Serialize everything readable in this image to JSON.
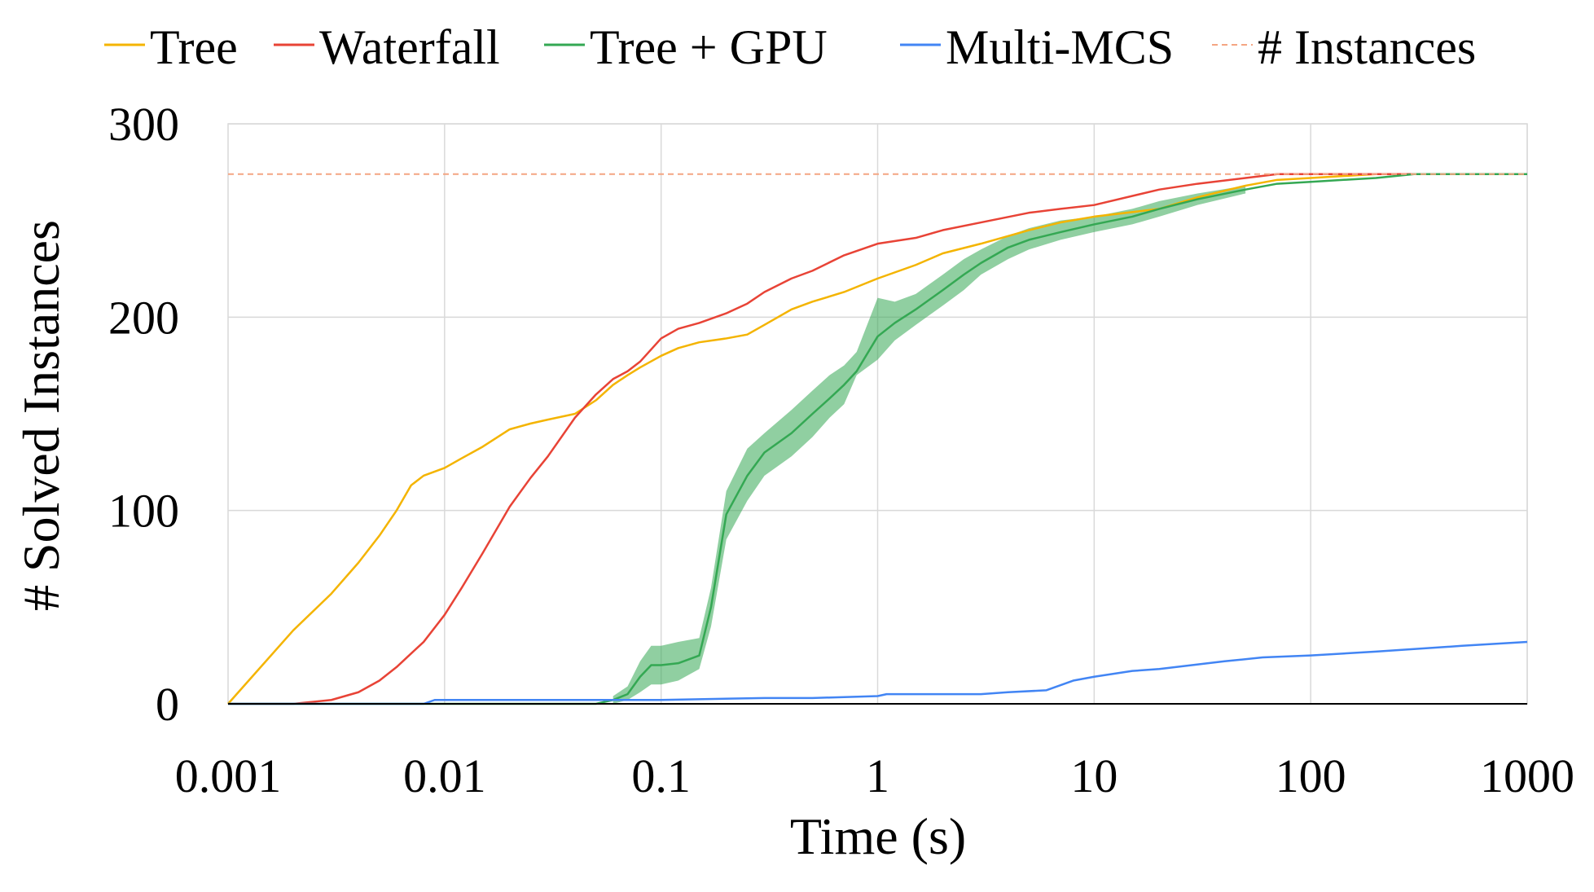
{
  "chart_data": {
    "type": "line",
    "title": "",
    "xlabel": "Time (s)",
    "ylabel": "# Solved Instances",
    "x_scale": "log",
    "xlim": [
      0.001,
      1000
    ],
    "ylim": [
      0,
      300
    ],
    "x_ticks": [
      0.001,
      0.01,
      0.1,
      1,
      10,
      100,
      1000
    ],
    "x_tick_labels": [
      "0.001",
      "0.01",
      "0.1",
      "1",
      "10",
      "100",
      "1000"
    ],
    "y_ticks": [
      0,
      100,
      200,
      300
    ],
    "y_tick_labels": [
      "0",
      "100",
      "200",
      "300"
    ],
    "grid": true,
    "legend_position": "top",
    "series": [
      {
        "name": "Tree",
        "color": "#f4b400",
        "style": "solid",
        "x": [
          0.001,
          0.002,
          0.003,
          0.004,
          0.005,
          0.006,
          0.007,
          0.008,
          0.01,
          0.012,
          0.015,
          0.02,
          0.025,
          0.03,
          0.04,
          0.05,
          0.06,
          0.07,
          0.08,
          0.1,
          0.12,
          0.15,
          0.2,
          0.25,
          0.3,
          0.4,
          0.5,
          0.7,
          1.0,
          1.5,
          2,
          3,
          5,
          7,
          10,
          20,
          30,
          50,
          70,
          100,
          200,
          300,
          1000
        ],
        "y": [
          0,
          38,
          57,
          73,
          87,
          100,
          113,
          118,
          122,
          127,
          133,
          142,
          145,
          147,
          150,
          157,
          165,
          170,
          174,
          180,
          184,
          187,
          189,
          191,
          196,
          204,
          208,
          213,
          220,
          227,
          233,
          238,
          245,
          249,
          252,
          256,
          262,
          268,
          271,
          272,
          274,
          274,
          274
        ]
      },
      {
        "name": "Waterfall",
        "color": "#e84336",
        "style": "solid",
        "x": [
          0.001,
          0.002,
          0.003,
          0.004,
          0.005,
          0.006,
          0.007,
          0.008,
          0.01,
          0.012,
          0.015,
          0.02,
          0.025,
          0.03,
          0.04,
          0.05,
          0.06,
          0.07,
          0.08,
          0.1,
          0.12,
          0.15,
          0.2,
          0.25,
          0.3,
          0.4,
          0.5,
          0.7,
          1.0,
          1.5,
          2,
          3,
          5,
          7,
          10,
          20,
          30,
          50,
          70,
          100,
          200,
          300,
          1000
        ],
        "y": [
          0,
          0,
          2,
          6,
          12,
          19,
          26,
          32,
          46,
          60,
          78,
          102,
          117,
          128,
          148,
          160,
          168,
          172,
          177,
          189,
          194,
          197,
          202,
          207,
          213,
          220,
          224,
          232,
          238,
          241,
          245,
          249,
          254,
          256,
          258,
          266,
          269,
          272,
          274,
          274,
          274,
          274,
          274
        ]
      },
      {
        "name": "Tree + GPU",
        "color": "#34a853",
        "style": "solid",
        "x": [
          0.001,
          0.01,
          0.05,
          0.06,
          0.07,
          0.08,
          0.09,
          0.1,
          0.12,
          0.15,
          0.17,
          0.2,
          0.25,
          0.3,
          0.4,
          0.5,
          0.6,
          0.7,
          0.8,
          1.0,
          1.2,
          1.5,
          2,
          2.5,
          3,
          4,
          5,
          7,
          10,
          15,
          20,
          30,
          50,
          70,
          100,
          200,
          300,
          1000
        ],
        "y": [
          0,
          0,
          0,
          2,
          5,
          14,
          20,
          20,
          21,
          25,
          50,
          98,
          118,
          130,
          140,
          150,
          158,
          165,
          172,
          190,
          197,
          204,
          214,
          222,
          228,
          236,
          240,
          244,
          248,
          252,
          256,
          261,
          266,
          269,
          270,
          272,
          274,
          274
        ]
      },
      {
        "name": "Multi-MCS",
        "color": "#4285f4",
        "style": "solid",
        "x": [
          0.001,
          0.005,
          0.008,
          0.009,
          0.05,
          0.1,
          0.3,
          0.5,
          1.0,
          1.1,
          3,
          4,
          6,
          8,
          10,
          15,
          20,
          40,
          60,
          100,
          200,
          500,
          1000
        ],
        "y": [
          0,
          0,
          0,
          2,
          2,
          2,
          3,
          3,
          4,
          5,
          5,
          6,
          7,
          12,
          14,
          17,
          18,
          22,
          24,
          25,
          27,
          30,
          32
        ]
      },
      {
        "name": "# Instances",
        "color": "#f4a582",
        "style": "dashed",
        "x": [
          0.001,
          1000
        ],
        "y": [
          274,
          274
        ]
      }
    ],
    "error_bands": [
      {
        "series": "Tree + GPU",
        "x": [
          0.06,
          0.07,
          0.08,
          0.09,
          0.1,
          0.12,
          0.15,
          0.17,
          0.2,
          0.25,
          0.3,
          0.4,
          0.5,
          0.6,
          0.7,
          0.8,
          1.0,
          1.2,
          1.5,
          2,
          2.5,
          3,
          4,
          5,
          7,
          10,
          15,
          20,
          30,
          50
        ],
        "low": [
          0,
          2,
          6,
          10,
          10,
          12,
          18,
          40,
          85,
          105,
          118,
          128,
          138,
          148,
          155,
          170,
          178,
          188,
          196,
          206,
          214,
          222,
          230,
          235,
          240,
          244,
          248,
          252,
          258,
          264
        ],
        "high": [
          4,
          9,
          22,
          30,
          30,
          32,
          34,
          60,
          110,
          132,
          140,
          152,
          162,
          170,
          175,
          182,
          210,
          208,
          212,
          222,
          230,
          235,
          242,
          246,
          250,
          252,
          256,
          260,
          264,
          268
        ]
      }
    ]
  }
}
